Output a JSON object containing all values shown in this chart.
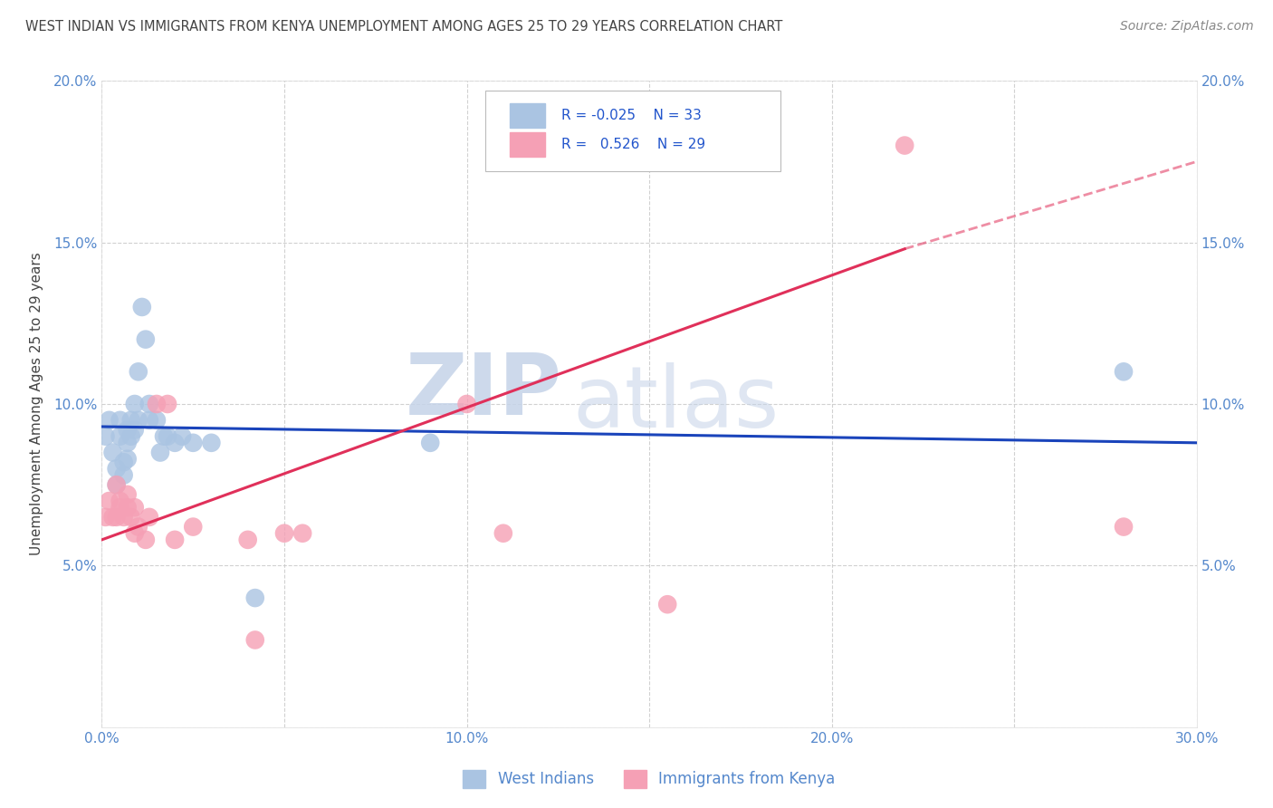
{
  "title": "WEST INDIAN VS IMMIGRANTS FROM KENYA UNEMPLOYMENT AMONG AGES 25 TO 29 YEARS CORRELATION CHART",
  "source": "Source: ZipAtlas.com",
  "ylabel": "Unemployment Among Ages 25 to 29 years",
  "xlim": [
    0.0,
    0.3
  ],
  "ylim": [
    0.0,
    0.2
  ],
  "xticks": [
    0.0,
    0.05,
    0.1,
    0.15,
    0.2,
    0.25,
    0.3
  ],
  "yticks": [
    0.0,
    0.05,
    0.1,
    0.15,
    0.2
  ],
  "xtick_labels": [
    "0.0%",
    "",
    "10.0%",
    "",
    "20.0%",
    "",
    "30.0%"
  ],
  "ytick_labels_left": [
    "",
    "5.0%",
    "10.0%",
    "15.0%",
    "20.0%"
  ],
  "ytick_labels_right": [
    "",
    "5.0%",
    "10.0%",
    "15.0%",
    "20.0%"
  ],
  "blue_color": "#aac4e2",
  "pink_color": "#f5a0b5",
  "line_blue": "#1a44bb",
  "line_pink": "#e0305a",
  "axis_color": "#5588cc",
  "watermark_zip": "ZIP",
  "watermark_atlas": "atlas",
  "blue_x": [
    0.001,
    0.002,
    0.003,
    0.004,
    0.004,
    0.005,
    0.005,
    0.006,
    0.006,
    0.007,
    0.007,
    0.007,
    0.008,
    0.008,
    0.009,
    0.009,
    0.01,
    0.01,
    0.011,
    0.012,
    0.013,
    0.013,
    0.015,
    0.016,
    0.017,
    0.018,
    0.02,
    0.022,
    0.025,
    0.03,
    0.042,
    0.09,
    0.28
  ],
  "blue_y": [
    0.09,
    0.095,
    0.085,
    0.075,
    0.08,
    0.095,
    0.09,
    0.082,
    0.078,
    0.092,
    0.088,
    0.083,
    0.095,
    0.09,
    0.1,
    0.092,
    0.11,
    0.095,
    0.13,
    0.12,
    0.095,
    0.1,
    0.095,
    0.085,
    0.09,
    0.09,
    0.088,
    0.09,
    0.088,
    0.088,
    0.04,
    0.088,
    0.11
  ],
  "pink_x": [
    0.001,
    0.002,
    0.003,
    0.004,
    0.004,
    0.005,
    0.005,
    0.006,
    0.007,
    0.007,
    0.008,
    0.009,
    0.009,
    0.01,
    0.012,
    0.013,
    0.015,
    0.018,
    0.02,
    0.025,
    0.04,
    0.042,
    0.05,
    0.055,
    0.1,
    0.11,
    0.155,
    0.22,
    0.28
  ],
  "pink_y": [
    0.065,
    0.07,
    0.065,
    0.075,
    0.065,
    0.07,
    0.068,
    0.065,
    0.068,
    0.072,
    0.065,
    0.068,
    0.06,
    0.062,
    0.058,
    0.065,
    0.1,
    0.1,
    0.058,
    0.062,
    0.058,
    0.027,
    0.06,
    0.06,
    0.1,
    0.06,
    0.038,
    0.18,
    0.062
  ],
  "blue_line_x0": 0.0,
  "blue_line_x1": 0.3,
  "blue_line_y0": 0.093,
  "blue_line_y1": 0.088,
  "pink_line_x0": 0.0,
  "pink_line_solid_x1": 0.22,
  "pink_line_dashed_x1": 0.3,
  "pink_line_y0": 0.058,
  "pink_line_y_solid1": 0.148,
  "pink_line_y_dashed1": 0.175
}
